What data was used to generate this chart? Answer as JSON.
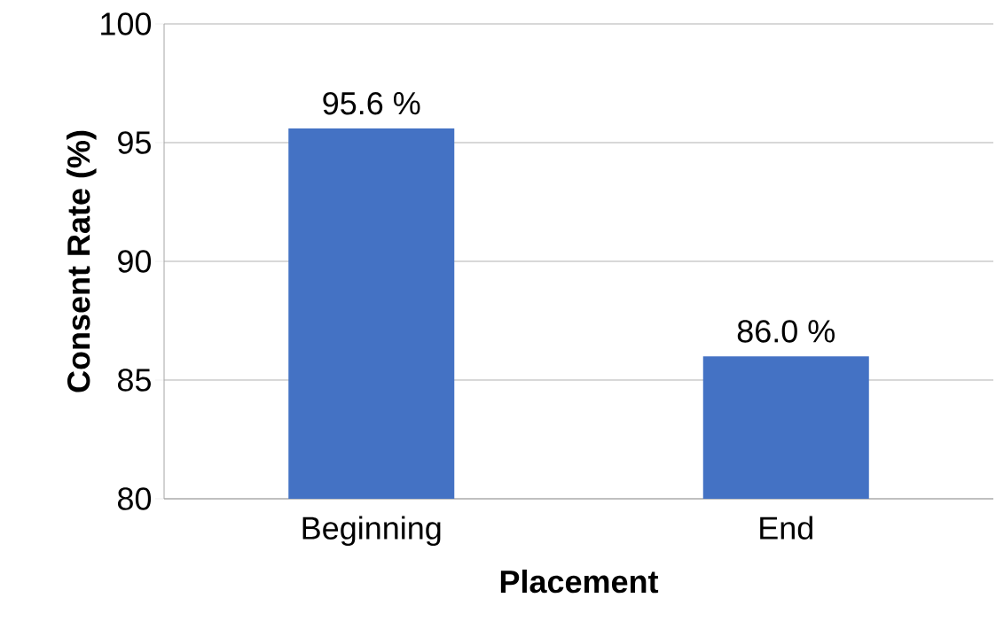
{
  "chart_data": {
    "type": "bar",
    "xlabel": "Placement",
    "ylabel": "Consent Rate (%)",
    "categories": [
      "Beginning",
      "End"
    ],
    "values": [
      95.6,
      86.0
    ],
    "value_labels": [
      "95.6 %",
      "86.0 %"
    ],
    "color": "#4472c4",
    "ylim": [
      80,
      100
    ],
    "yticks": [
      80,
      85,
      90,
      95,
      100
    ],
    "grid": "y"
  }
}
